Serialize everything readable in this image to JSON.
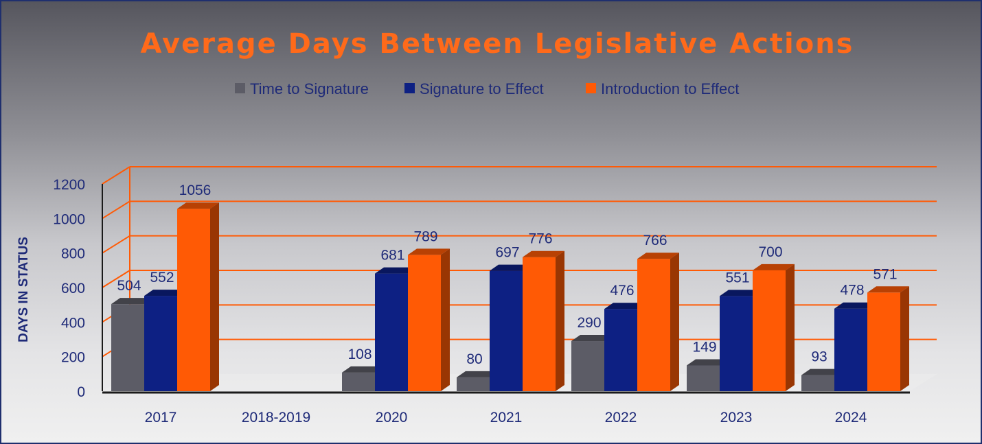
{
  "chart_data": {
    "type": "bar",
    "title": "Average Days Between Legislative Actions",
    "xlabel": "",
    "ylabel": "DAYS IN STATUS",
    "ylim": [
      0,
      1200
    ],
    "yticks": [
      "0",
      "200",
      "400",
      "600",
      "800",
      "1000",
      "1200"
    ],
    "grid": true,
    "legend_position": "top-center",
    "categories": [
      "2017",
      "2018-2019",
      "2020",
      "2021",
      "2022",
      "2023",
      "2024"
    ],
    "series": [
      {
        "name": "Time to Signature",
        "color": "#5c5c66",
        "values": [
          504,
          null,
          108,
          80,
          290,
          149,
          93
        ]
      },
      {
        "name": "Signature to Effect",
        "color": "#0d2083",
        "values": [
          552,
          null,
          681,
          697,
          476,
          551,
          478
        ]
      },
      {
        "name": "Introduction to Effect",
        "color": "#ff5a05",
        "values": [
          1056,
          null,
          789,
          776,
          766,
          700,
          571
        ]
      }
    ]
  }
}
